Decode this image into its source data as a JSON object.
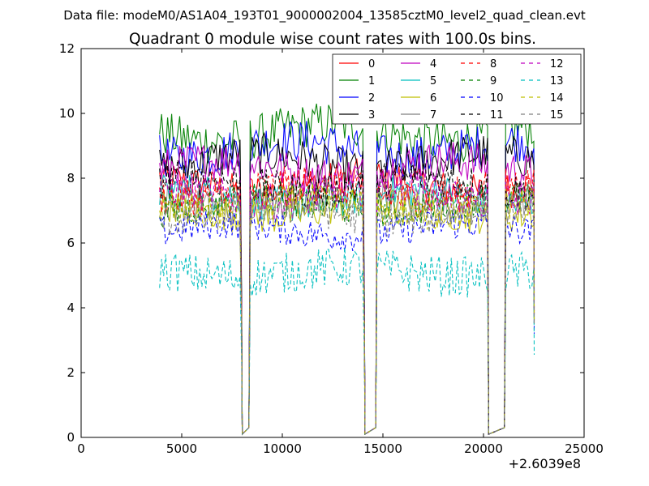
{
  "header": {
    "data_file_text": "Data file: modeM0/AS1A04_193T01_9000002004_13585cztM0_level2_quad_clean.evt"
  },
  "chart_data": {
    "type": "line",
    "title": "Quadrant 0 module wise count rates with 100.0s bins.",
    "xlabel": "",
    "ylabel": "",
    "x_offset_label": "+2.6039e8",
    "xlim": [
      0,
      25000
    ],
    "ylim": [
      0,
      12
    ],
    "xticks": [
      0,
      5000,
      10000,
      15000,
      20000,
      25000
    ],
    "xtick_labels": [
      "0",
      "5000",
      "10000",
      "15000",
      "20000",
      "25000"
    ],
    "yticks": [
      0,
      2,
      4,
      6,
      8,
      10,
      12
    ],
    "ytick_labels": [
      "0",
      "2",
      "4",
      "6",
      "8",
      "10",
      "12"
    ],
    "bin_size_s": 100,
    "data_segments": [
      [
        3900,
        7950
      ],
      [
        8400,
        14050
      ],
      [
        14700,
        20200
      ],
      [
        21100,
        22500
      ]
    ],
    "gaps": [
      [
        8000,
        8350
      ],
      [
        14100,
        14650
      ],
      [
        20250,
        21050
      ]
    ],
    "legend_position": "top-right",
    "legend_columns": 4,
    "series": [
      {
        "name": "0",
        "color": "#ff0000",
        "dash": "solid",
        "mean": 7.8
      },
      {
        "name": "1",
        "color": "#008000",
        "dash": "solid",
        "mean": 9.4
      },
      {
        "name": "2",
        "color": "#0000ff",
        "dash": "solid",
        "mean": 8.9
      },
      {
        "name": "3",
        "color": "#000000",
        "dash": "solid",
        "mean": 8.5
      },
      {
        "name": "4",
        "color": "#bf00bf",
        "dash": "solid",
        "mean": 8.3
      },
      {
        "name": "5",
        "color": "#00bfbf",
        "dash": "solid",
        "mean": 7.4
      },
      {
        "name": "6",
        "color": "#bfbf00",
        "dash": "solid",
        "mean": 7.0
      },
      {
        "name": "7",
        "color": "#808080",
        "dash": "solid",
        "mean": 7.3
      },
      {
        "name": "8",
        "color": "#ff0000",
        "dash": "dashed",
        "mean": 7.6
      },
      {
        "name": "9",
        "color": "#008000",
        "dash": "dashed",
        "mean": 7.2
      },
      {
        "name": "10",
        "color": "#0000ff",
        "dash": "dashed",
        "mean": 6.4
      },
      {
        "name": "11",
        "color": "#000000",
        "dash": "dashed",
        "mean": 7.8
      },
      {
        "name": "12",
        "color": "#bf00bf",
        "dash": "dashed",
        "mean": 7.5
      },
      {
        "name": "13",
        "color": "#00bfbf",
        "dash": "dashed",
        "mean": 5.1
      },
      {
        "name": "14",
        "color": "#bfbf00",
        "dash": "dashed",
        "mean": 7.1
      },
      {
        "name": "15",
        "color": "#808080",
        "dash": "dashed",
        "mean": 6.9
      }
    ]
  }
}
